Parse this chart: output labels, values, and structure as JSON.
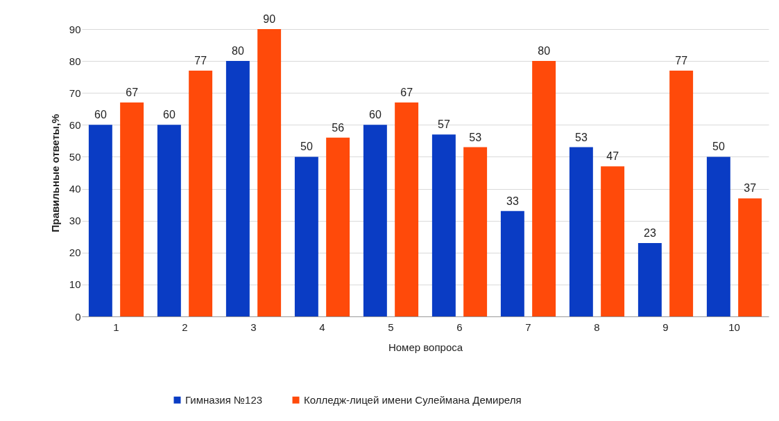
{
  "chart_data": {
    "type": "bar",
    "xlabel": "Номер вопроса",
    "ylabel": "Правильные ответы,%",
    "categories": [
      "1",
      "2",
      "3",
      "4",
      "5",
      "6",
      "7",
      "8",
      "9",
      "10"
    ],
    "series": [
      {
        "name": "Гимназия №123",
        "color": "#0a3cc4",
        "values": [
          60,
          60,
          80,
          50,
          60,
          57,
          33,
          53,
          23,
          50
        ]
      },
      {
        "name": "Колледж-лицей имени Сулеймана Демиреля",
        "color": "#ff4a0a",
        "values": [
          67,
          77,
          90,
          56,
          67,
          53,
          80,
          47,
          77,
          37
        ]
      }
    ],
    "ylim": [
      0,
      90
    ],
    "yticks": [
      0,
      10,
      20,
      30,
      40,
      50,
      60,
      70,
      80,
      90
    ],
    "grid": "y",
    "legend": "bottom",
    "data_labels": true
  }
}
